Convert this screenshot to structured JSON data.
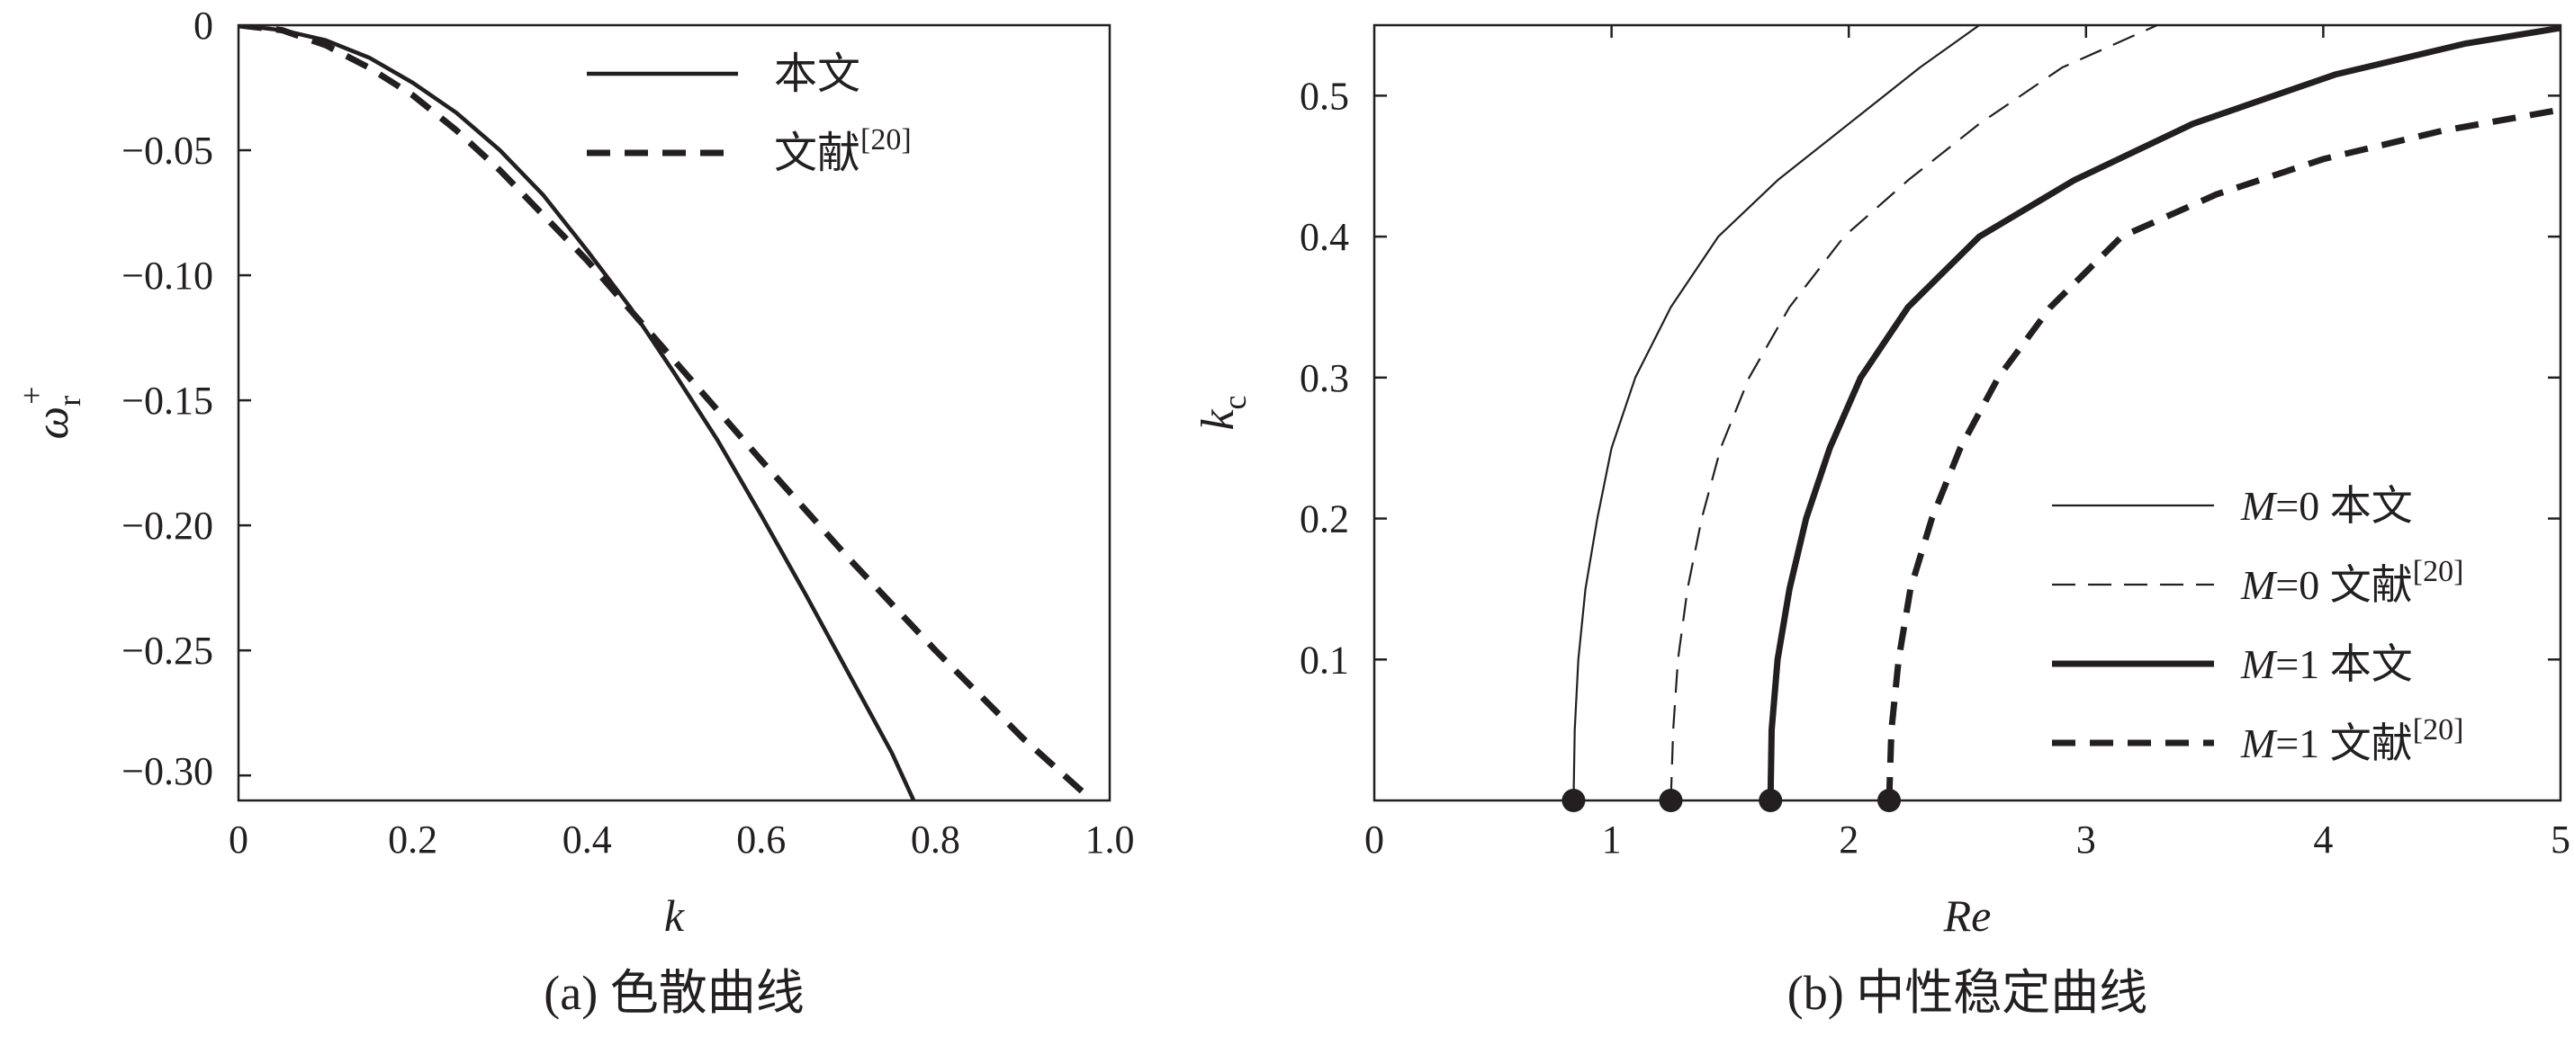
{
  "chart_data": [
    {
      "type": "line",
      "caption": "(a) 色散曲线",
      "xlabel": "k",
      "ylabel": {
        "main": "ω",
        "sub": "r",
        "sup": "+"
      },
      "xlim": [
        0,
        1.0
      ],
      "ylim": [
        -0.31,
        0
      ],
      "xticks": [
        0,
        0.2,
        0.4,
        0.6,
        0.8,
        1.0
      ],
      "xtick_labels": [
        "0",
        "0.2",
        "0.4",
        "0.6",
        "0.8",
        "1.0"
      ],
      "yticks": [
        0,
        -0.05,
        -0.1,
        -0.15,
        -0.2,
        -0.25,
        -0.3
      ],
      "ytick_labels": [
        "0",
        "−0.05",
        "−0.10",
        "−0.15",
        "−0.20",
        "−0.25",
        "−0.30"
      ],
      "grid": false,
      "legend_position": "top-right",
      "series": [
        {
          "name": "本文",
          "name_sup": "",
          "style": "solid",
          "weight": "medium",
          "x": [
            0,
            0.05,
            0.1,
            0.15,
            0.2,
            0.25,
            0.3,
            0.35,
            0.4,
            0.45,
            0.5,
            0.55,
            0.6,
            0.65,
            0.7,
            0.75,
            0.775
          ],
          "y": [
            0,
            -0.002,
            -0.006,
            -0.013,
            -0.023,
            -0.035,
            -0.05,
            -0.068,
            -0.09,
            -0.113,
            -0.139,
            -0.166,
            -0.196,
            -0.227,
            -0.259,
            -0.291,
            -0.31
          ]
        },
        {
          "name": "文献",
          "name_sup": "[20]",
          "style": "dashed",
          "weight": "heavy",
          "x": [
            0,
            0.05,
            0.1,
            0.15,
            0.2,
            0.25,
            0.3,
            0.35,
            0.4,
            0.45,
            0.5,
            0.6,
            0.7,
            0.8,
            0.9,
            0.98
          ],
          "y": [
            0,
            -0.002,
            -0.008,
            -0.017,
            -0.028,
            -0.042,
            -0.058,
            -0.076,
            -0.094,
            -0.114,
            -0.134,
            -0.174,
            -0.213,
            -0.25,
            -0.285,
            -0.31
          ]
        }
      ]
    },
    {
      "type": "line",
      "caption": "(b) 中性稳定曲线",
      "xlabel": "Re",
      "ylabel": {
        "main": "k",
        "sub": "c",
        "sup": ""
      },
      "xlim": [
        0,
        5
      ],
      "ylim": [
        0,
        0.55
      ],
      "xticks": [
        0,
        1,
        2,
        3,
        4,
        5
      ],
      "xtick_labels": [
        "0",
        "1",
        "2",
        "3",
        "4",
        "5"
      ],
      "yticks": [
        0.1,
        0.2,
        0.3,
        0.4,
        0.5
      ],
      "ytick_labels": [
        "0.1",
        "0.2",
        "0.3",
        "0.4",
        "0.5"
      ],
      "grid": false,
      "legend_position": "bottom-right",
      "markers": [
        {
          "x": 0.84,
          "y": 0
        },
        {
          "x": 1.25,
          "y": 0
        },
        {
          "x": 1.67,
          "y": 0
        },
        {
          "x": 2.17,
          "y": 0
        }
      ],
      "series": [
        {
          "name": "M=0 本文",
          "label_var": "M",
          "label_val": "=0",
          "label_src": "本文",
          "name_sup": "",
          "style": "solid",
          "weight": "thin",
          "x": [
            0.84,
            0.845,
            0.86,
            0.89,
            0.94,
            1.0,
            1.1,
            1.25,
            1.45,
            1.7,
            2.0,
            2.3,
            2.55
          ],
          "y": [
            0,
            0.05,
            0.1,
            0.15,
            0.2,
            0.25,
            0.3,
            0.35,
            0.4,
            0.44,
            0.48,
            0.52,
            0.55
          ]
        },
        {
          "name": "M=0 文献[20]",
          "label_var": "M",
          "label_val": "=0",
          "label_src": "文献",
          "name_sup": "[20]",
          "style": "dashed",
          "weight": "thin",
          "x": [
            1.25,
            1.26,
            1.28,
            1.32,
            1.38,
            1.46,
            1.58,
            1.75,
            1.98,
            2.25,
            2.55,
            2.9,
            3.3
          ],
          "y": [
            0,
            0.05,
            0.1,
            0.15,
            0.2,
            0.25,
            0.3,
            0.35,
            0.4,
            0.44,
            0.48,
            0.52,
            0.55
          ]
        },
        {
          "name": "M=1 本文",
          "label_var": "M",
          "label_val": "=1",
          "label_src": "本文",
          "name_sup": "",
          "style": "solid",
          "weight": "heavy",
          "x": [
            1.67,
            1.675,
            1.7,
            1.75,
            1.82,
            1.92,
            2.05,
            2.25,
            2.55,
            2.95,
            3.45,
            4.05,
            4.6,
            5.0
          ],
          "y": [
            0,
            0.05,
            0.1,
            0.15,
            0.2,
            0.25,
            0.3,
            0.35,
            0.4,
            0.44,
            0.48,
            0.515,
            0.537,
            0.548
          ]
        },
        {
          "name": "M=1 文献[20]",
          "label_var": "M",
          "label_val": "=1",
          "label_src": "文献",
          "name_sup": "[20]",
          "style": "dashed",
          "weight": "heavy",
          "x": [
            2.17,
            2.18,
            2.21,
            2.26,
            2.35,
            2.47,
            2.63,
            2.85,
            3.15,
            3.55,
            4.0,
            4.5,
            5.0
          ],
          "y": [
            0,
            0.05,
            0.1,
            0.15,
            0.2,
            0.25,
            0.3,
            0.35,
            0.4,
            0.43,
            0.455,
            0.475,
            0.49
          ]
        }
      ]
    }
  ]
}
